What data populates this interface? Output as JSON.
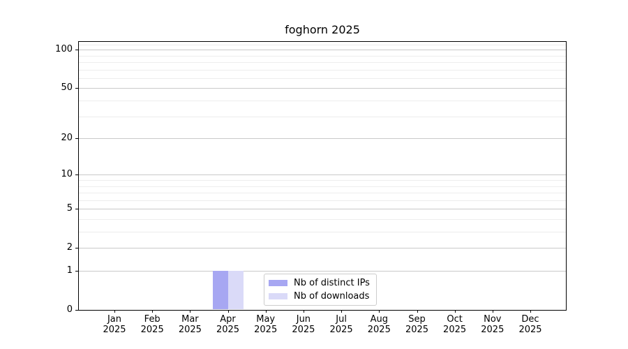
{
  "chart_data": {
    "type": "bar",
    "title": "foghorn 2025",
    "categories": [
      "Jan",
      "Feb",
      "Mar",
      "Apr",
      "May",
      "Jun",
      "Jul",
      "Aug",
      "Sep",
      "Oct",
      "Nov",
      "Dec"
    ],
    "category_year": "2025",
    "series": [
      {
        "name": "Nb of distinct IPs",
        "color": "#a7a7f2",
        "values": [
          0,
          0,
          0,
          1,
          0,
          0,
          0,
          0,
          0,
          0,
          0,
          0
        ]
      },
      {
        "name": "Nb of downloads",
        "color": "#dadaf8",
        "values": [
          0,
          0,
          0,
          1,
          0,
          0,
          0,
          0,
          0,
          0,
          0,
          0
        ]
      }
    ],
    "xlabel": "",
    "ylabel": "",
    "yscale": "log1p",
    "ylim": [
      0,
      115
    ],
    "yticks": [
      0,
      1,
      2,
      5,
      10,
      20,
      50,
      100
    ],
    "yticks_minor": [
      3,
      4,
      6,
      7,
      8,
      9,
      30,
      40,
      60,
      70,
      80,
      90,
      110
    ],
    "grid": "both",
    "legend": {
      "position": "lower center"
    },
    "colors": {
      "spine": "#000000",
      "grid_major": "#c9c9c9",
      "grid_minor": "#ededed",
      "text": "#000000"
    }
  }
}
